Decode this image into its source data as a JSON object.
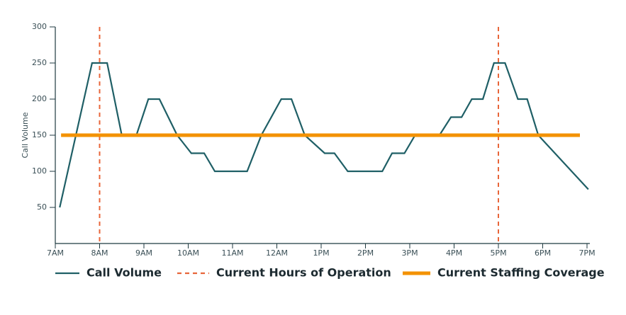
{
  "chart_data": {
    "type": "line",
    "ylabel": "Call Volume",
    "ylim": [
      0,
      300
    ],
    "yticks": [
      50,
      100,
      150,
      200,
      250,
      300
    ],
    "xlim": [
      7,
      19
    ],
    "xticks": [
      {
        "value": 7,
        "label": "7AM"
      },
      {
        "value": 8,
        "label": "8AM"
      },
      {
        "value": 9,
        "label": "9AM"
      },
      {
        "value": 10,
        "label": "10AM"
      },
      {
        "value": 11,
        "label": "11AM"
      },
      {
        "value": 12,
        "label": "12AM"
      },
      {
        "value": 13,
        "label": "1PM"
      },
      {
        "value": 14,
        "label": "2PM"
      },
      {
        "value": 15,
        "label": "3PM"
      },
      {
        "value": 16,
        "label": "4PM"
      },
      {
        "value": 17,
        "label": "5PM"
      },
      {
        "value": 18,
        "label": "6PM"
      },
      {
        "value": 19,
        "label": "7PM"
      }
    ],
    "series": [
      {
        "name": "Call Volume",
        "color": "#1f5f66",
        "style": "solid",
        "x": [
          7.1,
          7.83,
          8.17,
          8.5,
          8.83,
          9.1,
          9.35,
          9.75,
          10.07,
          10.36,
          10.6,
          11.33,
          11.65,
          12.1,
          12.33,
          12.63,
          13.08,
          13.3,
          13.6,
          14.38,
          14.6,
          14.88,
          15.12,
          15.67,
          15.93,
          16.17,
          16.4,
          16.65,
          16.9,
          17.15,
          17.44,
          17.65,
          17.9,
          19.03
        ],
        "values": [
          50,
          250,
          250,
          150,
          150,
          200,
          200,
          150,
          125,
          125,
          100,
          100,
          150,
          200,
          200,
          150,
          125,
          125,
          100,
          100,
          125,
          125,
          150,
          150,
          175,
          175,
          200,
          200,
          250,
          250,
          200,
          200,
          150,
          75
        ]
      },
      {
        "name": "Current Hours of Operation",
        "color": "#e8663a",
        "style": "dashed-vline",
        "x": [
          8,
          17
        ]
      },
      {
        "name": "Current Staffing Coverage",
        "color": "#f39200",
        "style": "thick",
        "x": [
          7.13,
          18.84
        ],
        "values": [
          150,
          150
        ]
      }
    ]
  }
}
